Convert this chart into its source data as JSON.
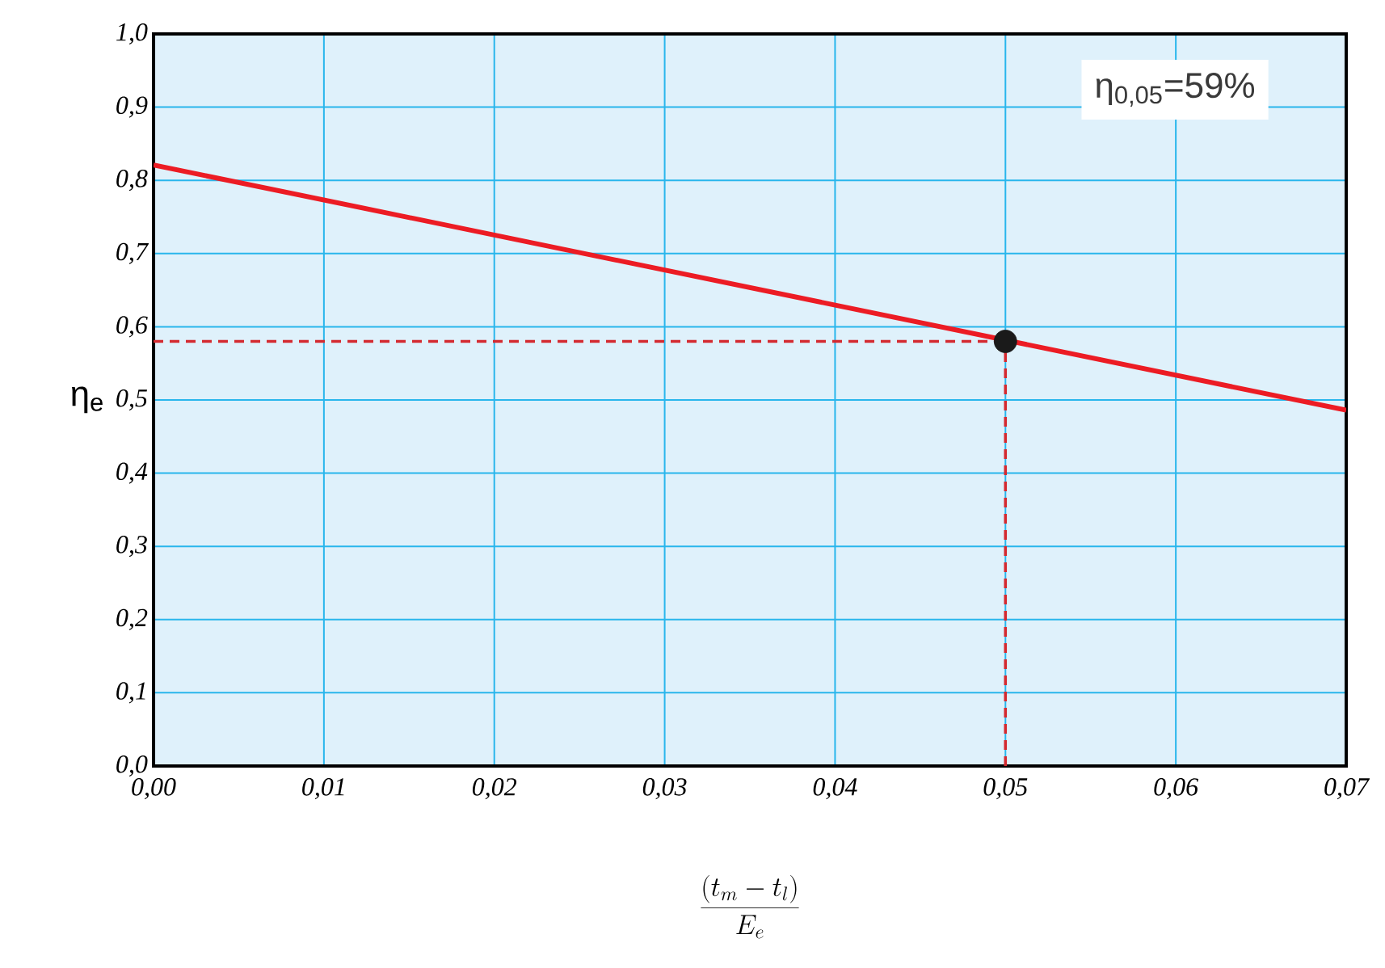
{
  "chart_data": {
    "type": "line",
    "xlabel": "\\frac{(t_{m}-t_{l})}{E_{e}}",
    "ylabel": "η$_{e}$",
    "annotations": [
      "η$_{0,05}$=59%"
    ],
    "xlim": [
      0,
      0.07
    ],
    "ylim": [
      0,
      1
    ],
    "xticks": [
      {
        "value": 0,
        "label": "0,00"
      },
      {
        "value": 0.01,
        "label": "0,01"
      },
      {
        "value": 0.02,
        "label": "0,02"
      },
      {
        "value": 0.03,
        "label": "0,03"
      },
      {
        "value": 0.04,
        "label": "0,04"
      },
      {
        "value": 0.05,
        "label": "0,05"
      },
      {
        "value": 0.06,
        "label": "0,06"
      },
      {
        "value": 0.07,
        "label": "0,07"
      }
    ],
    "yticks": [
      {
        "value": 0,
        "label": "0,0"
      },
      {
        "value": 0.1,
        "label": "0,1"
      },
      {
        "value": 0.2,
        "label": "0,2"
      },
      {
        "value": 0.3,
        "label": "0,3"
      },
      {
        "value": 0.4,
        "label": "0,4"
      },
      {
        "value": 0.5,
        "label": "0,5"
      },
      {
        "value": 0.6,
        "label": "0,6"
      },
      {
        "value": 0.7,
        "label": "0,7"
      },
      {
        "value": 0.8,
        "label": "0,8"
      },
      {
        "value": 0.9,
        "label": "0,9"
      },
      {
        "value": 1,
        "label": "1,0"
      }
    ],
    "grid": true,
    "series": [
      {
        "type": "line",
        "color": "#d42a30",
        "line_style": "dashed",
        "x": [
          0,
          0.05
        ],
        "values": [
          0.58,
          0.58
        ]
      },
      {
        "type": "line",
        "color": "#d42a30",
        "line_style": "dashed",
        "x": [
          0.05,
          0.05
        ],
        "values": [
          0,
          0.58
        ]
      },
      {
        "color": "#ec1c24",
        "line_style": "solid",
        "x": [
          0,
          0.07
        ],
        "values": [
          0.821,
          0.486
        ]
      },
      {
        "type": "scatter",
        "color": "#1a1a1a",
        "marker": "circle",
        "x": [
          0.05
        ],
        "values": [
          0.58
        ]
      }
    ]
  }
}
